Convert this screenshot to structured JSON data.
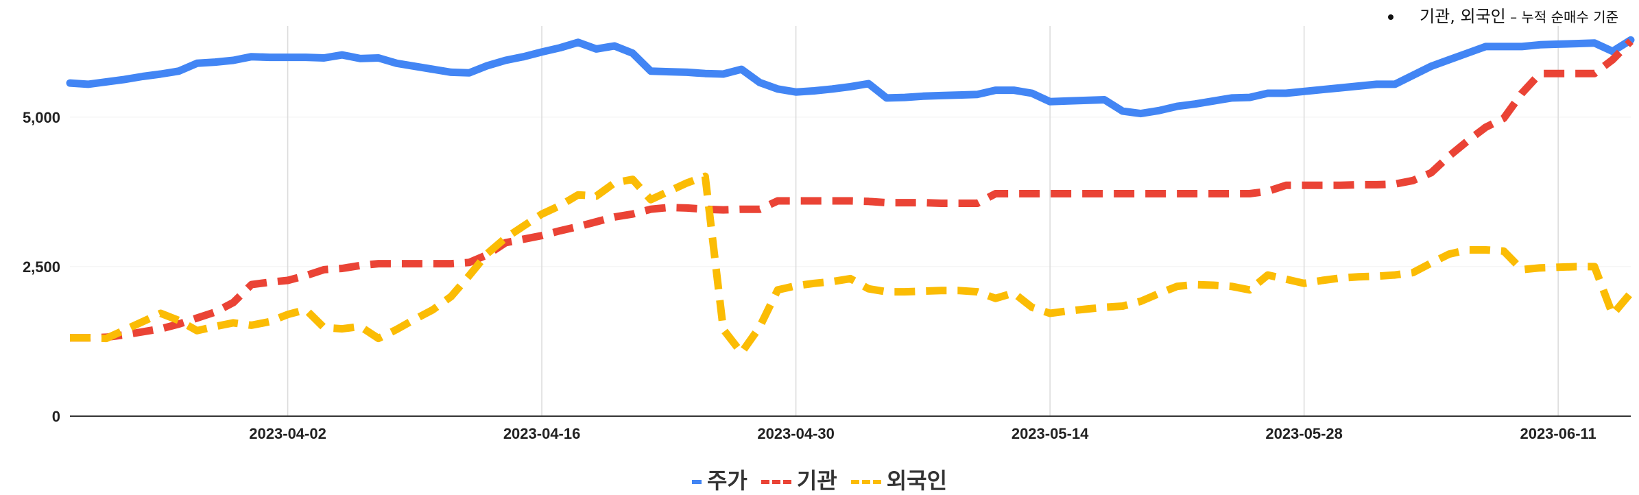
{
  "annotation": {
    "main": "기관, 외국인",
    "dash": " – ",
    "sub": "누적 순매수 기준"
  },
  "chart_data": {
    "type": "line",
    "ylim": [
      0,
      6500
    ],
    "yticks": [
      0,
      2500,
      5000
    ],
    "ytick_labels": [
      "0",
      "2,500",
      "5,000"
    ],
    "xrange": [
      "2023-03-21",
      "2023-06-15"
    ],
    "xticks": [
      "2023-04-02",
      "2023-04-16",
      "2023-04-30",
      "2023-05-14",
      "2023-05-28",
      "2023-06-11"
    ],
    "grid": "vertical",
    "legend_position": "bottom",
    "series": [
      {
        "name": "주가",
        "color": "#4285f4",
        "style": "solid",
        "points": [
          [
            "2023-03-21",
            5570
          ],
          [
            "2023-03-22",
            5550
          ],
          [
            "2023-03-23",
            5590
          ],
          [
            "2023-03-24",
            5630
          ],
          [
            "2023-03-25",
            5680
          ],
          [
            "2023-03-26",
            5720
          ],
          [
            "2023-03-27",
            5770
          ],
          [
            "2023-03-28",
            5900
          ],
          [
            "2023-03-29",
            5920
          ],
          [
            "2023-03-30",
            5950
          ],
          [
            "2023-03-31",
            6010
          ],
          [
            "2023-04-01",
            6000
          ],
          [
            "2023-04-02",
            6000
          ],
          [
            "2023-04-03",
            6000
          ],
          [
            "2023-04-04",
            5990
          ],
          [
            "2023-04-05",
            6040
          ],
          [
            "2023-04-06",
            5980
          ],
          [
            "2023-04-07",
            5990
          ],
          [
            "2023-04-08",
            5900
          ],
          [
            "2023-04-09",
            5850
          ],
          [
            "2023-04-10",
            5800
          ],
          [
            "2023-04-11",
            5750
          ],
          [
            "2023-04-12",
            5740
          ],
          [
            "2023-04-13",
            5860
          ],
          [
            "2023-04-14",
            5950
          ],
          [
            "2023-04-15",
            6010
          ],
          [
            "2023-04-16",
            6090
          ],
          [
            "2023-04-17",
            6160
          ],
          [
            "2023-04-18",
            6250
          ],
          [
            "2023-04-19",
            6140
          ],
          [
            "2023-04-20",
            6190
          ],
          [
            "2023-04-21",
            6070
          ],
          [
            "2023-04-22",
            5770
          ],
          [
            "2023-04-23",
            5760
          ],
          [
            "2023-04-24",
            5750
          ],
          [
            "2023-04-25",
            5730
          ],
          [
            "2023-04-26",
            5720
          ],
          [
            "2023-04-27",
            5800
          ],
          [
            "2023-04-28",
            5580
          ],
          [
            "2023-04-29",
            5470
          ],
          [
            "2023-04-30",
            5420
          ],
          [
            "2023-05-01",
            5440
          ],
          [
            "2023-05-02",
            5470
          ],
          [
            "2023-05-03",
            5510
          ],
          [
            "2023-05-04",
            5560
          ],
          [
            "2023-05-05",
            5320
          ],
          [
            "2023-05-06",
            5330
          ],
          [
            "2023-05-07",
            5350
          ],
          [
            "2023-05-08",
            5360
          ],
          [
            "2023-05-09",
            5370
          ],
          [
            "2023-05-10",
            5380
          ],
          [
            "2023-05-11",
            5450
          ],
          [
            "2023-05-12",
            5450
          ],
          [
            "2023-05-13",
            5400
          ],
          [
            "2023-05-14",
            5260
          ],
          [
            "2023-05-15",
            5270
          ],
          [
            "2023-05-16",
            5280
          ],
          [
            "2023-05-17",
            5290
          ],
          [
            "2023-05-18",
            5100
          ],
          [
            "2023-05-19",
            5060
          ],
          [
            "2023-05-20",
            5110
          ],
          [
            "2023-05-21",
            5180
          ],
          [
            "2023-05-22",
            5220
          ],
          [
            "2023-05-23",
            5270
          ],
          [
            "2023-05-24",
            5320
          ],
          [
            "2023-05-25",
            5330
          ],
          [
            "2023-05-26",
            5400
          ],
          [
            "2023-05-27",
            5400
          ],
          [
            "2023-05-28",
            5430
          ],
          [
            "2023-05-29",
            5460
          ],
          [
            "2023-05-30",
            5490
          ],
          [
            "2023-05-31",
            5520
          ],
          [
            "2023-06-01",
            5550
          ],
          [
            "2023-06-02",
            5550
          ],
          [
            "2023-06-03",
            5700
          ],
          [
            "2023-06-04",
            5850
          ],
          [
            "2023-06-05",
            5960
          ],
          [
            "2023-06-06",
            6070
          ],
          [
            "2023-06-07",
            6180
          ],
          [
            "2023-06-08",
            6180
          ],
          [
            "2023-06-09",
            6180
          ],
          [
            "2023-06-10",
            6210
          ],
          [
            "2023-06-11",
            6220
          ],
          [
            "2023-06-12",
            6230
          ],
          [
            "2023-06-13",
            6240
          ],
          [
            "2023-06-14",
            6100
          ],
          [
            "2023-06-15",
            6290
          ]
        ]
      },
      {
        "name": "기관",
        "color": "#ea4335",
        "style": "dashed",
        "points": [
          [
            "2023-03-21",
            1310
          ],
          [
            "2023-03-22",
            1310
          ],
          [
            "2023-03-23",
            1320
          ],
          [
            "2023-03-24",
            1360
          ],
          [
            "2023-03-25",
            1410
          ],
          [
            "2023-03-26",
            1460
          ],
          [
            "2023-03-27",
            1540
          ],
          [
            "2023-03-28",
            1640
          ],
          [
            "2023-03-29",
            1740
          ],
          [
            "2023-03-30",
            1900
          ],
          [
            "2023-03-31",
            2200
          ],
          [
            "2023-04-01",
            2240
          ],
          [
            "2023-04-02",
            2270
          ],
          [
            "2023-04-03",
            2350
          ],
          [
            "2023-04-04",
            2450
          ],
          [
            "2023-04-05",
            2470
          ],
          [
            "2023-04-06",
            2520
          ],
          [
            "2023-04-07",
            2550
          ],
          [
            "2023-04-08",
            2550
          ],
          [
            "2023-04-09",
            2550
          ],
          [
            "2023-04-10",
            2550
          ],
          [
            "2023-04-11",
            2550
          ],
          [
            "2023-04-12",
            2570
          ],
          [
            "2023-04-13",
            2700
          ],
          [
            "2023-04-14",
            2900
          ],
          [
            "2023-04-15",
            2960
          ],
          [
            "2023-04-16",
            3020
          ],
          [
            "2023-04-17",
            3100
          ],
          [
            "2023-04-18",
            3170
          ],
          [
            "2023-04-19",
            3250
          ],
          [
            "2023-04-20",
            3330
          ],
          [
            "2023-04-21",
            3380
          ],
          [
            "2023-04-22",
            3460
          ],
          [
            "2023-04-23",
            3490
          ],
          [
            "2023-04-24",
            3480
          ],
          [
            "2023-04-25",
            3460
          ],
          [
            "2023-04-26",
            3450
          ],
          [
            "2023-04-27",
            3460
          ],
          [
            "2023-04-28",
            3460
          ],
          [
            "2023-04-29",
            3600
          ],
          [
            "2023-04-30",
            3600
          ],
          [
            "2023-05-01",
            3600
          ],
          [
            "2023-05-02",
            3600
          ],
          [
            "2023-05-03",
            3600
          ],
          [
            "2023-05-04",
            3590
          ],
          [
            "2023-05-05",
            3570
          ],
          [
            "2023-05-06",
            3570
          ],
          [
            "2023-05-07",
            3570
          ],
          [
            "2023-05-08",
            3560
          ],
          [
            "2023-05-09",
            3560
          ],
          [
            "2023-05-10",
            3560
          ],
          [
            "2023-05-11",
            3720
          ],
          [
            "2023-05-12",
            3720
          ],
          [
            "2023-05-13",
            3720
          ],
          [
            "2023-05-14",
            3720
          ],
          [
            "2023-05-15",
            3720
          ],
          [
            "2023-05-16",
            3720
          ],
          [
            "2023-05-17",
            3720
          ],
          [
            "2023-05-18",
            3720
          ],
          [
            "2023-05-19",
            3720
          ],
          [
            "2023-05-20",
            3720
          ],
          [
            "2023-05-21",
            3720
          ],
          [
            "2023-05-22",
            3720
          ],
          [
            "2023-05-23",
            3720
          ],
          [
            "2023-05-24",
            3720
          ],
          [
            "2023-05-25",
            3720
          ],
          [
            "2023-05-26",
            3760
          ],
          [
            "2023-05-27",
            3860
          ],
          [
            "2023-05-28",
            3860
          ],
          [
            "2023-05-29",
            3860
          ],
          [
            "2023-05-30",
            3860
          ],
          [
            "2023-05-31",
            3870
          ],
          [
            "2023-06-01",
            3870
          ],
          [
            "2023-06-02",
            3880
          ],
          [
            "2023-06-03",
            3940
          ],
          [
            "2023-06-04",
            4070
          ],
          [
            "2023-06-05",
            4350
          ],
          [
            "2023-06-06",
            4600
          ],
          [
            "2023-06-07",
            4830
          ],
          [
            "2023-06-08",
            4980
          ],
          [
            "2023-06-09",
            5400
          ],
          [
            "2023-06-10",
            5730
          ],
          [
            "2023-06-11",
            5730
          ],
          [
            "2023-06-12",
            5730
          ],
          [
            "2023-06-13",
            5730
          ],
          [
            "2023-06-14",
            5960
          ],
          [
            "2023-06-15",
            6270
          ]
        ]
      },
      {
        "name": "외국인",
        "color": "#fbbc04",
        "style": "dashed",
        "points": [
          [
            "2023-03-21",
            1310
          ],
          [
            "2023-03-22",
            1310
          ],
          [
            "2023-03-23",
            1300
          ],
          [
            "2023-03-24",
            1440
          ],
          [
            "2023-03-25",
            1580
          ],
          [
            "2023-03-26",
            1720
          ],
          [
            "2023-03-27",
            1600
          ],
          [
            "2023-03-28",
            1430
          ],
          [
            "2023-03-29",
            1500
          ],
          [
            "2023-03-30",
            1560
          ],
          [
            "2023-03-31",
            1520
          ],
          [
            "2023-04-01",
            1580
          ],
          [
            "2023-04-02",
            1700
          ],
          [
            "2023-04-03",
            1780
          ],
          [
            "2023-04-04",
            1480
          ],
          [
            "2023-04-05",
            1460
          ],
          [
            "2023-04-06",
            1500
          ],
          [
            "2023-04-07",
            1300
          ],
          [
            "2023-04-08",
            1450
          ],
          [
            "2023-04-09",
            1620
          ],
          [
            "2023-04-10",
            1780
          ],
          [
            "2023-04-11",
            2000
          ],
          [
            "2023-04-12",
            2350
          ],
          [
            "2023-04-13",
            2720
          ],
          [
            "2023-04-14",
            2980
          ],
          [
            "2023-04-15",
            3180
          ],
          [
            "2023-04-16",
            3380
          ],
          [
            "2023-04-17",
            3520
          ],
          [
            "2023-04-18",
            3700
          ],
          [
            "2023-04-19",
            3680
          ],
          [
            "2023-04-20",
            3900
          ],
          [
            "2023-04-21",
            3960
          ],
          [
            "2023-04-22",
            3620
          ],
          [
            "2023-04-23",
            3760
          ],
          [
            "2023-04-24",
            3900
          ],
          [
            "2023-04-25",
            4010
          ],
          [
            "2023-04-26",
            1450
          ],
          [
            "2023-04-27",
            1060
          ],
          [
            "2023-04-28",
            1490
          ],
          [
            "2023-04-29",
            2110
          ],
          [
            "2023-04-30",
            2180
          ],
          [
            "2023-05-01",
            2220
          ],
          [
            "2023-05-02",
            2250
          ],
          [
            "2023-05-03",
            2300
          ],
          [
            "2023-05-04",
            2130
          ],
          [
            "2023-05-05",
            2080
          ],
          [
            "2023-05-06",
            2080
          ],
          [
            "2023-05-07",
            2090
          ],
          [
            "2023-05-08",
            2100
          ],
          [
            "2023-05-09",
            2100
          ],
          [
            "2023-05-10",
            2080
          ],
          [
            "2023-05-11",
            1970
          ],
          [
            "2023-05-12",
            2060
          ],
          [
            "2023-05-13",
            1820
          ],
          [
            "2023-05-14",
            1720
          ],
          [
            "2023-05-15",
            1760
          ],
          [
            "2023-05-16",
            1790
          ],
          [
            "2023-05-17",
            1820
          ],
          [
            "2023-05-18",
            1840
          ],
          [
            "2023-05-19",
            1920
          ],
          [
            "2023-05-20",
            2050
          ],
          [
            "2023-05-21",
            2170
          ],
          [
            "2023-05-22",
            2200
          ],
          [
            "2023-05-23",
            2190
          ],
          [
            "2023-05-24",
            2170
          ],
          [
            "2023-05-25",
            2110
          ],
          [
            "2023-05-26",
            2360
          ],
          [
            "2023-05-27",
            2290
          ],
          [
            "2023-05-28",
            2220
          ],
          [
            "2023-05-29",
            2270
          ],
          [
            "2023-05-30",
            2310
          ],
          [
            "2023-05-31",
            2330
          ],
          [
            "2023-06-01",
            2340
          ],
          [
            "2023-06-02",
            2360
          ],
          [
            "2023-06-03",
            2400
          ],
          [
            "2023-06-04",
            2560
          ],
          [
            "2023-06-05",
            2710
          ],
          [
            "2023-06-06",
            2780
          ],
          [
            "2023-06-07",
            2780
          ],
          [
            "2023-06-08",
            2760
          ],
          [
            "2023-06-09",
            2450
          ],
          [
            "2023-06-10",
            2480
          ],
          [
            "2023-06-11",
            2490
          ],
          [
            "2023-06-12",
            2500
          ],
          [
            "2023-06-13",
            2500
          ],
          [
            "2023-06-14",
            1700
          ],
          [
            "2023-06-15",
            2060
          ]
        ]
      }
    ]
  }
}
